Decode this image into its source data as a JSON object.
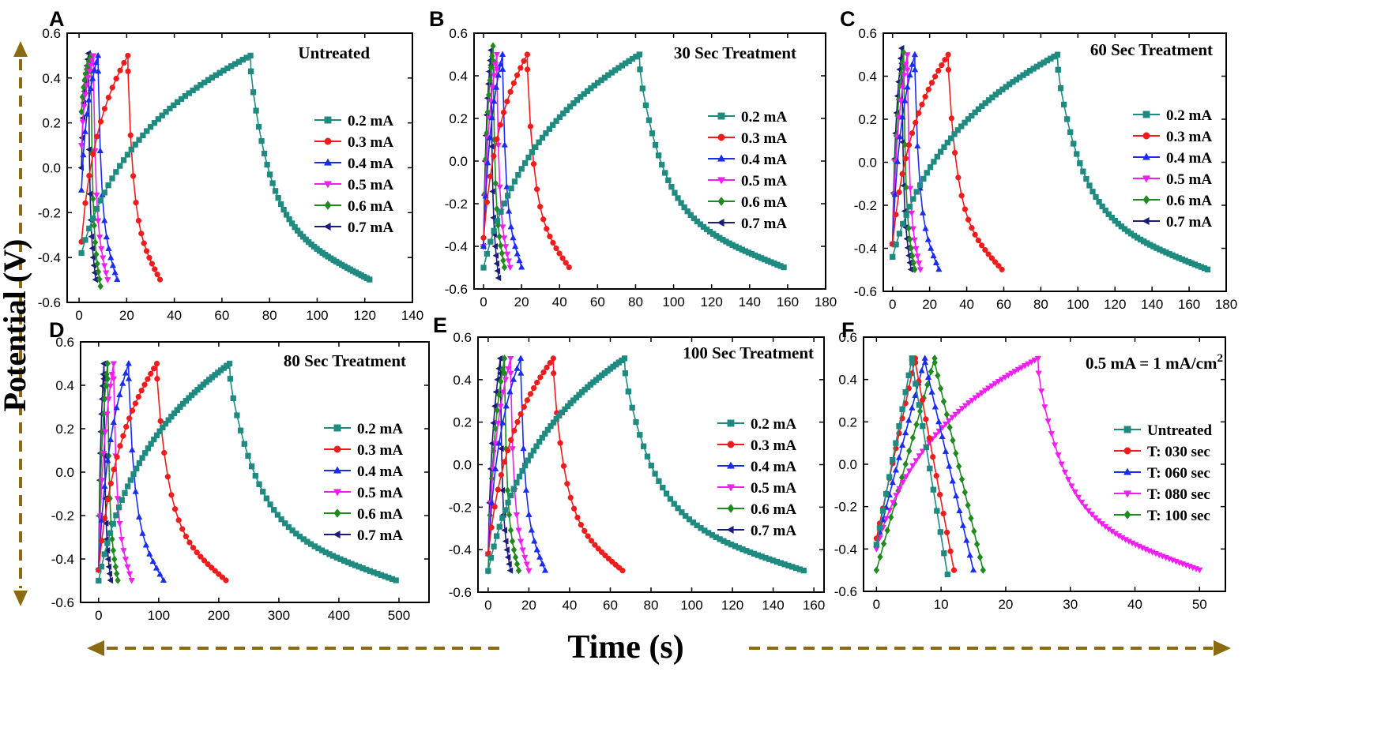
{
  "figure": {
    "ylabel": "Potential (V)",
    "xlabel": "Time (s)",
    "colors": {
      "0.2 mA": "#1f8a80",
      "0.3 mA": "#ee1c1c",
      "0.4 mA": "#1a2cf0",
      "0.5 mA": "#f21df2",
      "0.6 mA": "#1f8a1f",
      "0.7 mA": "#1c1c7a",
      "axis_arrow": "#8b6b12"
    }
  },
  "chart_data": [
    {
      "panel": "A",
      "type": "line",
      "title": "Untreated",
      "xlim": [
        -5,
        140
      ],
      "ylim": [
        -0.6,
        0.6
      ],
      "xticks": [
        0,
        20,
        40,
        60,
        80,
        100,
        120,
        140
      ],
      "yticks": [
        -0.6,
        -0.4,
        -0.2,
        0.0,
        0.2,
        0.4,
        0.6
      ],
      "xtick_labels": [
        "0",
        "20",
        "40",
        "60",
        "80",
        "100",
        "120",
        "140"
      ],
      "ytick_labels": [
        "-0.6",
        "-0.4",
        "-0.2",
        "0.0",
        "0.2",
        "0.4",
        "0.6"
      ],
      "series": [
        {
          "name": "0.2 mA",
          "marker": "square",
          "t0": 1,
          "tc": 72,
          "te": 122,
          "v0": -0.38,
          "vpeak": 0.5,
          "vend": -0.5
        },
        {
          "name": "0.3 mA",
          "marker": "circle",
          "t0": 1,
          "tc": 20.5,
          "te": 34,
          "v0": -0.33,
          "vpeak": 0.5,
          "vend": -0.5
        },
        {
          "name": "0.4 mA",
          "marker": "triangle-up",
          "t0": 1,
          "tc": 8,
          "te": 16,
          "v0": -0.1,
          "vpeak": 0.5,
          "vend": -0.5
        },
        {
          "name": "0.5 mA",
          "marker": "triangle-down",
          "t0": 1,
          "tc": 6,
          "te": 12,
          "v0": 0.1,
          "vpeak": 0.5,
          "vend": -0.5
        },
        {
          "name": "0.6 mA",
          "marker": "diamond",
          "t0": 1,
          "tc": 5,
          "te": 9,
          "v0": 0.25,
          "vpeak": 0.5,
          "vend": -0.53
        },
        {
          "name": "0.7 mA",
          "marker": "triangle-left",
          "t0": 1,
          "tc": 4,
          "te": 7,
          "v0": 0.0,
          "vpeak": 0.51,
          "vend": -0.5
        }
      ]
    },
    {
      "panel": "B",
      "type": "line",
      "title": "30 Sec Treatment",
      "xlim": [
        -5,
        180
      ],
      "ylim": [
        -0.6,
        0.6
      ],
      "xticks": [
        0,
        20,
        40,
        60,
        80,
        100,
        120,
        140,
        160,
        180
      ],
      "yticks": [
        -0.6,
        -0.4,
        -0.2,
        0.0,
        0.2,
        0.4,
        0.6
      ],
      "xtick_labels": [
        "0",
        "20",
        "40",
        "60",
        "80",
        "100",
        "120",
        "140",
        "160",
        "180"
      ],
      "ytick_labels": [
        "-0.6",
        "-0.4",
        "-0.2",
        "0.0",
        "0.2",
        "0.4",
        "0.6"
      ],
      "series": [
        {
          "name": "0.2 mA",
          "marker": "square",
          "t0": 0,
          "tc": 82,
          "te": 158,
          "v0": -0.5,
          "vpeak": 0.5,
          "vend": -0.5
        },
        {
          "name": "0.3 mA",
          "marker": "circle",
          "t0": 0,
          "tc": 23,
          "te": 45,
          "v0": -0.36,
          "vpeak": 0.5,
          "vend": -0.5
        },
        {
          "name": "0.4 mA",
          "marker": "triangle-up",
          "t0": 0,
          "tc": 10,
          "te": 20,
          "v0": -0.4,
          "vpeak": 0.5,
          "vend": -0.5
        },
        {
          "name": "0.5 mA",
          "marker": "triangle-down",
          "t0": 0,
          "tc": 7,
          "te": 14,
          "v0": -0.4,
          "vpeak": 0.5,
          "vend": -0.5
        },
        {
          "name": "0.6 mA",
          "marker": "diamond",
          "t0": 0,
          "tc": 5,
          "te": 11,
          "v0": -0.4,
          "vpeak": 0.54,
          "vend": -0.5
        },
        {
          "name": "0.7 mA",
          "marker": "triangle-left",
          "t0": 0,
          "tc": 4,
          "te": 8,
          "v0": -0.4,
          "vpeak": 0.52,
          "vend": -0.55
        }
      ]
    },
    {
      "panel": "C",
      "type": "line",
      "title": "60 Sec Treatment",
      "xlim": [
        -5,
        180
      ],
      "ylim": [
        -0.6,
        0.6
      ],
      "xticks": [
        0,
        20,
        40,
        60,
        80,
        100,
        120,
        140,
        160,
        180
      ],
      "yticks": [
        -0.6,
        -0.4,
        -0.2,
        0.0,
        0.2,
        0.4,
        0.6
      ],
      "xtick_labels": [
        "0",
        "20",
        "40",
        "60",
        "80",
        "100",
        "120",
        "140",
        "160",
        "180"
      ],
      "ytick_labels": [
        "-0.6",
        "-0.4",
        "-0.2",
        "0.0",
        "0.2",
        "0.4",
        "0.6"
      ],
      "series": [
        {
          "name": "0.2 mA",
          "marker": "square",
          "t0": 0,
          "tc": 89,
          "te": 170,
          "v0": -0.44,
          "vpeak": 0.5,
          "vend": -0.5
        },
        {
          "name": "0.3 mA",
          "marker": "circle",
          "t0": 0,
          "tc": 30,
          "te": 59,
          "v0": -0.38,
          "vpeak": 0.5,
          "vend": -0.5
        },
        {
          "name": "0.4 mA",
          "marker": "triangle-up",
          "t0": 0,
          "tc": 12,
          "te": 25,
          "v0": -0.38,
          "vpeak": 0.5,
          "vend": -0.5
        },
        {
          "name": "0.5 mA",
          "marker": "triangle-down",
          "t0": 0,
          "tc": 8,
          "te": 15,
          "v0": -0.38,
          "vpeak": 0.5,
          "vend": -0.5
        },
        {
          "name": "0.6 mA",
          "marker": "diamond",
          "t0": 0,
          "tc": 6,
          "te": 12,
          "v0": -0.38,
          "vpeak": 0.51,
          "vend": -0.5
        },
        {
          "name": "0.7 mA",
          "marker": "triangle-left",
          "t0": 0,
          "tc": 5,
          "te": 10,
          "v0": -0.38,
          "vpeak": 0.53,
          "vend": -0.5
        }
      ]
    },
    {
      "panel": "D",
      "type": "line",
      "title": "80 Sec Treatment",
      "xlim": [
        -30,
        550
      ],
      "ylim": [
        -0.6,
        0.6
      ],
      "xticks": [
        0,
        100,
        200,
        300,
        400,
        500
      ],
      "yticks": [
        -0.6,
        -0.4,
        -0.2,
        0.0,
        0.2,
        0.4,
        0.6
      ],
      "xtick_labels": [
        "0",
        "100",
        "200",
        "300",
        "400",
        "500"
      ],
      "ytick_labels": [
        "-0.6",
        "-0.4",
        "-0.2",
        "0.0",
        "0.2",
        "0.4",
        "0.6"
      ],
      "series": [
        {
          "name": "0.2 mA",
          "marker": "square",
          "t0": 0,
          "tc": 218,
          "te": 495,
          "v0": -0.5,
          "vpeak": 0.5,
          "vend": -0.5
        },
        {
          "name": "0.3 mA",
          "marker": "circle",
          "t0": 0,
          "tc": 97,
          "te": 212,
          "v0": -0.45,
          "vpeak": 0.5,
          "vend": -0.5
        },
        {
          "name": "0.4 mA",
          "marker": "triangle-up",
          "t0": 0,
          "tc": 50,
          "te": 108,
          "v0": -0.45,
          "vpeak": 0.5,
          "vend": -0.5
        },
        {
          "name": "0.5 mA",
          "marker": "triangle-down",
          "t0": 0,
          "tc": 25,
          "te": 55,
          "v0": -0.45,
          "vpeak": 0.5,
          "vend": -0.5
        },
        {
          "name": "0.6 mA",
          "marker": "diamond",
          "t0": 0,
          "tc": 15,
          "te": 32,
          "v0": -0.45,
          "vpeak": 0.5,
          "vend": -0.5
        },
        {
          "name": "0.7 mA",
          "marker": "triangle-left",
          "t0": 0,
          "tc": 9,
          "te": 20,
          "v0": -0.45,
          "vpeak": 0.5,
          "vend": -0.5
        }
      ]
    },
    {
      "panel": "E",
      "type": "line",
      "title": "100 Sec Treatment",
      "xlim": [
        -5,
        165
      ],
      "ylim": [
        -0.6,
        0.6
      ],
      "xticks": [
        0,
        20,
        40,
        60,
        80,
        100,
        120,
        140,
        160
      ],
      "yticks": [
        -0.6,
        -0.4,
        -0.2,
        0.0,
        0.2,
        0.4,
        0.6
      ],
      "xtick_labels": [
        "0",
        "20",
        "40",
        "60",
        "80",
        "100",
        "120",
        "140",
        "160"
      ],
      "ytick_labels": [
        "-0.6",
        "-0.4",
        "-0.2",
        "0.0",
        "0.2",
        "0.4",
        "0.6"
      ],
      "series": [
        {
          "name": "0.2 mA",
          "marker": "square",
          "t0": 0,
          "tc": 67,
          "te": 155,
          "v0": -0.5,
          "vpeak": 0.5,
          "vend": -0.5
        },
        {
          "name": "0.3 mA",
          "marker": "circle",
          "t0": 0,
          "tc": 32,
          "te": 66,
          "v0": -0.42,
          "vpeak": 0.5,
          "vend": -0.5
        },
        {
          "name": "0.4 mA",
          "marker": "triangle-up",
          "t0": 0,
          "tc": 16,
          "te": 28,
          "v0": -0.42,
          "vpeak": 0.5,
          "vend": -0.5
        },
        {
          "name": "0.5 mA",
          "marker": "triangle-down",
          "t0": 0,
          "tc": 11,
          "te": 20,
          "v0": -0.42,
          "vpeak": 0.5,
          "vend": -0.5
        },
        {
          "name": "0.6 mA",
          "marker": "diamond",
          "t0": 0,
          "tc": 8,
          "te": 15,
          "v0": -0.5,
          "vpeak": 0.5,
          "vend": -0.5
        },
        {
          "name": "0.7 mA",
          "marker": "triangle-left",
          "t0": 0,
          "tc": 6,
          "te": 11,
          "v0": -0.42,
          "vpeak": 0.5,
          "vend": -0.5
        }
      ]
    },
    {
      "panel": "F",
      "type": "line",
      "title": "0.5 mA = 1 mA/cm",
      "title_superscript": "2",
      "xlim": [
        -2,
        54
      ],
      "ylim": [
        -0.6,
        0.6
      ],
      "xticks": [
        0,
        10,
        20,
        30,
        40,
        50
      ],
      "yticks": [
        -0.6,
        -0.4,
        -0.2,
        0.0,
        0.2,
        0.4,
        0.6
      ],
      "xtick_labels": [
        "0",
        "10",
        "20",
        "30",
        "40",
        "50"
      ],
      "ytick_labels": [
        "-0.6",
        "-0.4",
        "-0.2",
        "0.0",
        "0.2",
        "0.4",
        "0.6"
      ],
      "series": [
        {
          "name": "Untreated",
          "color": "#1f8a80",
          "marker": "square",
          "t0": 0,
          "tc": 5.5,
          "te": 11,
          "v0": -0.38,
          "vpeak": 0.5,
          "vend": -0.52,
          "shape": "linear"
        },
        {
          "name": "T: 030 sec",
          "color": "#ee1c1c",
          "marker": "circle",
          "t0": 0,
          "tc": 6,
          "te": 12,
          "v0": -0.35,
          "vpeak": 0.5,
          "vend": -0.5,
          "shape": "linear"
        },
        {
          "name": "T: 060 sec",
          "color": "#1a2cf0",
          "marker": "triangle-up",
          "t0": 0,
          "tc": 7.5,
          "te": 15,
          "v0": -0.38,
          "vpeak": 0.5,
          "vend": -0.5,
          "shape": "linear"
        },
        {
          "name": "T: 080 sec",
          "color": "#f21df2",
          "marker": "triangle-down",
          "t0": 0,
          "tc": 25,
          "te": 50,
          "v0": -0.4,
          "vpeak": 0.5,
          "vend": -0.5,
          "shape": "curved"
        },
        {
          "name": "T: 100 sec",
          "color": "#1f8a1f",
          "marker": "diamond",
          "t0": 0,
          "tc": 9,
          "te": 16.5,
          "v0": -0.5,
          "vpeak": 0.5,
          "vend": -0.5,
          "shape": "linear"
        }
      ]
    }
  ]
}
